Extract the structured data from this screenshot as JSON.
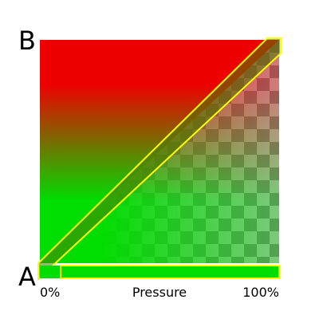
{
  "diagram": {
    "label_top": "B",
    "label_bottom": "A",
    "axis": {
      "min_label": "0%",
      "title": "Pressure",
      "max_label": "100%"
    }
  },
  "colors": {
    "color_b": "#ee0000",
    "color_a": "#00dd00",
    "band_outline": "#ffff00",
    "checker_light": "#bfbfbf",
    "checker_dark": "#808080"
  }
}
